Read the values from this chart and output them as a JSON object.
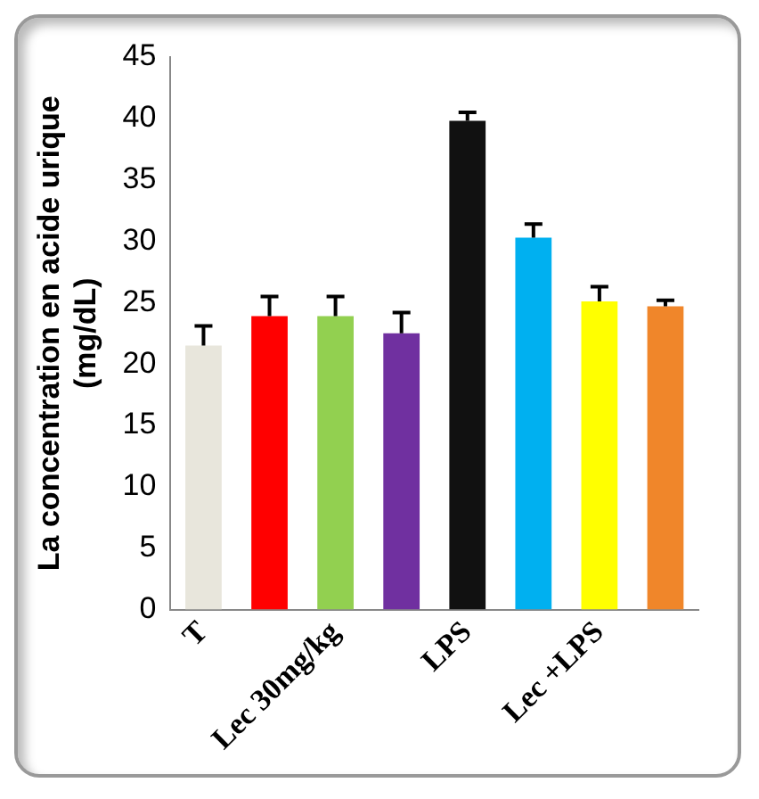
{
  "chart_data": {
    "type": "bar",
    "ylabel": "La concentration en acide urique (mg/dL)",
    "categories": [
      "T",
      null,
      "Lec 30mg/kg",
      null,
      "LPS",
      null,
      "Lec +LPS",
      null
    ],
    "values": [
      21.5,
      23.9,
      23.9,
      22.5,
      39.8,
      30.3,
      25.1,
      24.7
    ],
    "colors": [
      "#e8e6dc",
      "#ff0000",
      "#92d050",
      "#7030a0",
      "#111111",
      "#00b0f0",
      "#ffff00",
      "#f0862a"
    ],
    "errors": [
      [
        21.5,
        23.1
      ],
      [
        23.9,
        25.5
      ],
      [
        23.9,
        25.5
      ],
      [
        22.5,
        24.2
      ],
      [
        39.8,
        40.5
      ],
      [
        30.3,
        31.4
      ],
      [
        25.1,
        26.3
      ],
      [
        24.7,
        25.2
      ]
    ],
    "ylim": [
      0,
      45
    ],
    "yticks": [
      0,
      5,
      10,
      15,
      20,
      25,
      30,
      35,
      40,
      45
    ],
    "grid": false,
    "legend": false
  }
}
